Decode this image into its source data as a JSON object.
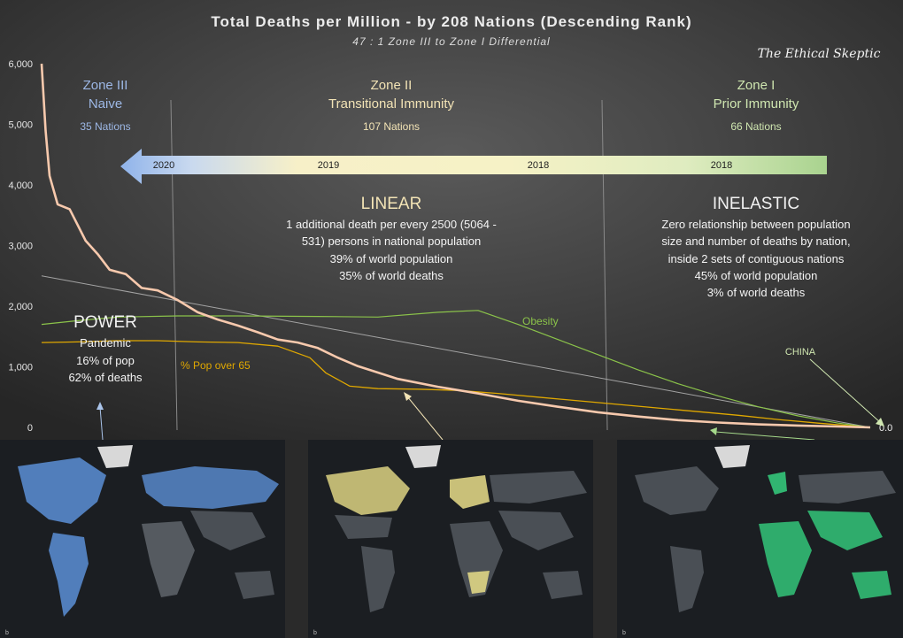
{
  "title": "Total Deaths per Million  - by 208 Nations (Descending Rank)",
  "subtitle": "47 : 1 Zone III to Zone I Differential",
  "brand": "The Ethical Skeptic",
  "zones": [
    {
      "title": "Zone III",
      "subtitle": "Naive",
      "nations": "35 Nations",
      "color": "#9db8e6"
    },
    {
      "title": "Zone II",
      "subtitle": "Transitional Immunity",
      "nations": "107 Nations",
      "color": "#f2e3b5"
    },
    {
      "title": "Zone I",
      "subtitle": "Prior Immunity",
      "nations": "66 Nations",
      "color": "#cfe6b0"
    }
  ],
  "timeline": {
    "years": [
      "2020",
      "2019",
      "2018",
      "2018"
    ]
  },
  "annotations": {
    "power": {
      "heading": "POWER",
      "lines": [
        "Pandemic",
        "16% of pop",
        "62% of deaths"
      ]
    },
    "linear": {
      "heading": "LINEAR",
      "lines": [
        "1 additional death per every 2500 (5064 -",
        "531) persons in national population",
        "39% of world population",
        "35% of world deaths"
      ]
    },
    "inelastic": {
      "heading": "INELASTIC",
      "lines": [
        "Zero relationship between population",
        "size and number of deaths by nation,",
        "inside 2 sets of contiguous nations",
        "45% of world population",
        "3% of world deaths"
      ]
    },
    "china": "CHINA",
    "end_value": "0.0"
  },
  "colors": {
    "deaths": "#f7c9ad",
    "obesity": "#8bc34a",
    "pop65": "#e0a800",
    "zone3": "#5b8fd6",
    "zone2": "#f2e27a",
    "zone1": "#35d07f"
  },
  "chart_data": {
    "type": "line",
    "x_description": "Nations in descending rank (1-208)",
    "ylim": [
      0,
      6000
    ],
    "yticks": [
      0,
      1000,
      2000,
      3000,
      4000,
      5000,
      6000
    ],
    "ytick_labels": [
      "0",
      "1,000",
      "2,000",
      "3,000",
      "4,000",
      "5,000",
      "6,000"
    ],
    "series": [
      {
        "name": "",
        "key": "deaths",
        "x": [
          1,
          2,
          3,
          5,
          8,
          12,
          15,
          18,
          22,
          26,
          30,
          35,
          40,
          45,
          50,
          55,
          60,
          65,
          70,
          75,
          80,
          90,
          100,
          110,
          120,
          130,
          140,
          150,
          160,
          170,
          180,
          190,
          200,
          208
        ],
        "y": [
          6000,
          4900,
          4150,
          3680,
          3600,
          3080,
          2860,
          2600,
          2530,
          2300,
          2260,
          2100,
          1900,
          1780,
          1680,
          1570,
          1450,
          1400,
          1310,
          1150,
          1010,
          800,
          670,
          560,
          440,
          340,
          250,
          180,
          120,
          80,
          50,
          30,
          15,
          0
        ]
      },
      {
        "name": "Obesity",
        "key": "obesity",
        "x": [
          1,
          10,
          20,
          35,
          50,
          70,
          85,
          100,
          110,
          120,
          130,
          140,
          150,
          160,
          170,
          180,
          190,
          200,
          208
        ],
        "y": [
          1700,
          1760,
          1820,
          1840,
          1840,
          1830,
          1820,
          1900,
          1930,
          1700,
          1450,
          1200,
          950,
          720,
          520,
          340,
          190,
          70,
          0
        ]
      },
      {
        "name": "% Pop over 65",
        "key": "pop65",
        "x": [
          1,
          10,
          20,
          30,
          40,
          50,
          60,
          68,
          72,
          78,
          85,
          95,
          105,
          115,
          125,
          135,
          145,
          155,
          165,
          175,
          185,
          195,
          208
        ],
        "y": [
          1400,
          1410,
          1430,
          1430,
          1410,
          1400,
          1340,
          1150,
          900,
          680,
          640,
          630,
          610,
          560,
          500,
          440,
          380,
          320,
          260,
          200,
          130,
          70,
          0
        ]
      },
      {
        "name": "",
        "key": "trend",
        "x": [
          1,
          208
        ],
        "y": [
          2500,
          0
        ]
      }
    ]
  }
}
